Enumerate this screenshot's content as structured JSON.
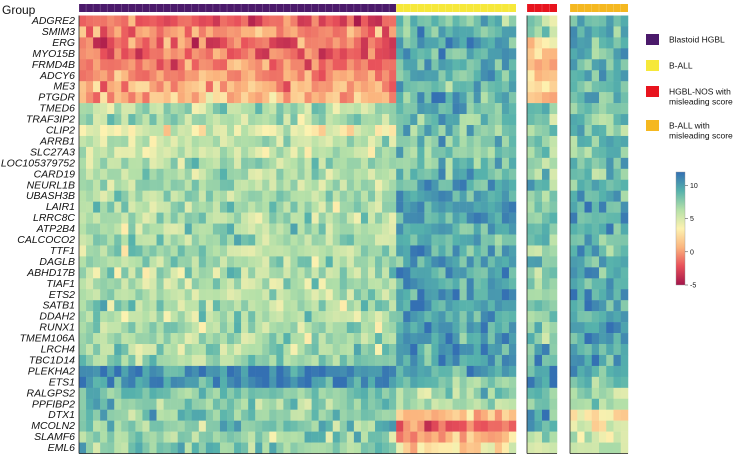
{
  "chart_data": {
    "type": "heatmap",
    "annotation_title": "Group",
    "genes": [
      "ADGRE2",
      "SMIM3",
      "ERG",
      "MYO15B",
      "FRMD4B",
      "ADCY6",
      "ME3",
      "PTGDR",
      "TMED6",
      "TRAF3IP2",
      "CLIP2",
      "ARRB1",
      "SLC27A3",
      "LOC105379752",
      "CARD19",
      "NEURL1B",
      "UBASH3B",
      "LAIR1",
      "LRRC8C",
      "ATP2B4",
      "CALCOCO2",
      "TTF1",
      "DAGLB",
      "ABHD17B",
      "TIAF1",
      "ETS2",
      "SATB1",
      "DDAH2",
      "RUNX1",
      "TMEM106A",
      "LRCH4",
      "TBC1D14",
      "PLEKHA2",
      "ETS1",
      "RALGPS2",
      "PPFIBP2",
      "DTX1",
      "MCOLN2",
      "SLAMF6",
      "EML6"
    ],
    "groups": [
      {
        "name": "Blastoid HGBL",
        "color": "#4b1a6b",
        "n_samples": 45
      },
      {
        "name": "B-ALL",
        "color": "#f6e83a",
        "n_samples": 17
      },
      {
        "name": "HGBL-NOS with misleading score",
        "color": "#e8141e",
        "n_samples": 4
      },
      {
        "name": "B-ALL with misleading score",
        "color": "#f5b820",
        "n_samples": 8
      }
    ],
    "panels": [
      {
        "groups": [
          "Blastoid HGBL",
          "B-ALL"
        ],
        "n_samples": 62
      },
      {
        "groups": [
          "HGBL-NOS with misleading score"
        ],
        "n_samples": 4
      },
      {
        "groups": [
          "B-ALL with misleading score"
        ],
        "n_samples": 8
      }
    ],
    "colorbar": {
      "range": [
        -5,
        12
      ],
      "ticks": [
        -5,
        0,
        5,
        10
      ],
      "tick_labels": [
        "-5",
        "0",
        "5",
        "10"
      ],
      "colors": [
        "#a3154a",
        "#e8505a",
        "#fbb57e",
        "#fdf2b0",
        "#b4e0a8",
        "#56b2ac",
        "#3470b3"
      ]
    },
    "group_means": {
      "Blastoid HGBL": [
        -2.0,
        -0.5,
        -1.5,
        -1.5,
        -1.0,
        -0.5,
        0.5,
        1.0,
        6.5,
        6.5,
        4.5,
        6.5,
        5.5,
        6.5,
        6.5,
        6.5,
        6.5,
        6.5,
        6.5,
        6.5,
        6.5,
        6.5,
        6.5,
        6.5,
        6.5,
        6.5,
        6.5,
        6.5,
        6.5,
        6.5,
        6.5,
        7.0,
        11.0,
        10.5,
        8.5,
        7.5,
        8.0,
        7.5,
        7.0,
        7.5
      ],
      "B-ALL": [
        8.5,
        9.0,
        9.0,
        9.5,
        9.0,
        9.0,
        8.5,
        9.0,
        9.0,
        8.5,
        8.5,
        8.5,
        8.0,
        8.5,
        9.0,
        9.5,
        10.0,
        10.0,
        10.0,
        9.5,
        9.5,
        9.5,
        9.5,
        10.0,
        9.5,
        10.0,
        10.0,
        9.5,
        10.0,
        10.0,
        10.0,
        10.0,
        9.0,
        8.0,
        7.0,
        6.5,
        1.5,
        -1.5,
        0.5,
        3.0
      ],
      "HGBL-NOS with misleading score": [
        7.0,
        7.5,
        2.0,
        1.5,
        1.0,
        2.0,
        1.5,
        1.0,
        7.0,
        7.0,
        7.0,
        7.0,
        7.0,
        7.0,
        7.0,
        7.5,
        8.0,
        8.0,
        8.0,
        7.5,
        7.5,
        7.5,
        7.5,
        7.5,
        7.5,
        7.5,
        7.5,
        7.5,
        8.0,
        8.0,
        8.5,
        8.5,
        9.5,
        10.0,
        8.5,
        8.0,
        9.5,
        9.0,
        6.0,
        6.5
      ],
      "B-ALL with misleading score": [
        8.5,
        9.0,
        9.0,
        9.5,
        9.0,
        9.0,
        8.5,
        8.5,
        8.5,
        8.5,
        8.5,
        8.5,
        8.0,
        8.5,
        8.5,
        9.0,
        9.5,
        9.5,
        9.5,
        9.0,
        9.0,
        9.0,
        9.0,
        9.5,
        9.0,
        9.5,
        9.5,
        9.0,
        9.5,
        9.5,
        9.5,
        10.0,
        9.0,
        8.0,
        7.0,
        6.5,
        4.0,
        3.5,
        5.5,
        6.0
      ]
    }
  }
}
